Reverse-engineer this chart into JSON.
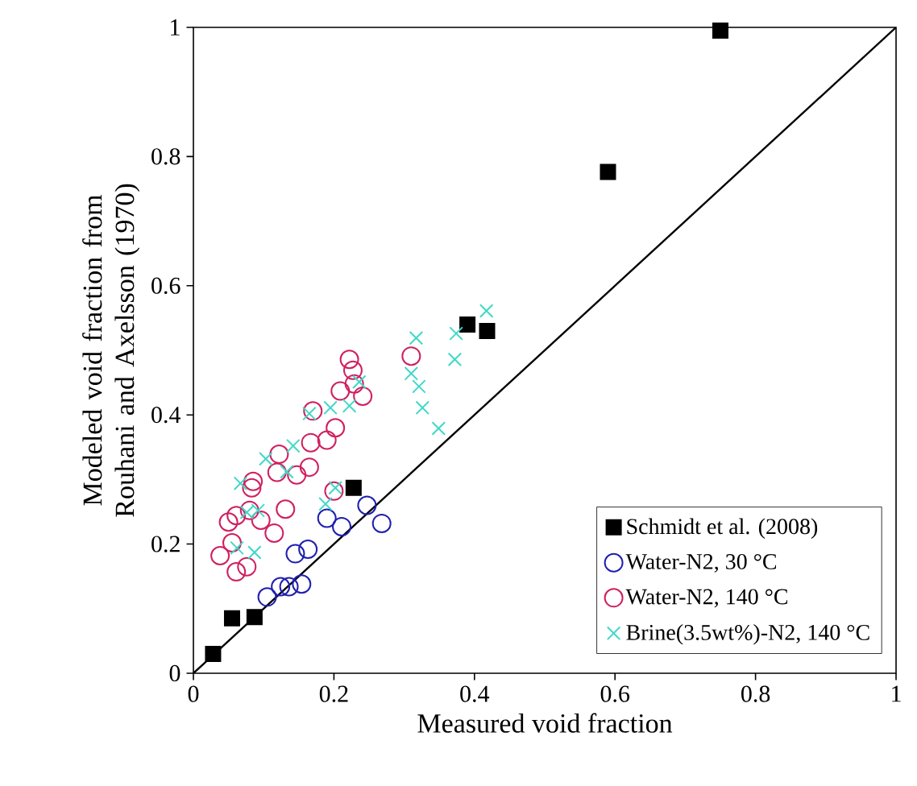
{
  "chart_data": {
    "type": "scatter",
    "xlabel": "Measured void fraction",
    "ylabel": "Modeled void fraction from Rouhani and Axelsson (1970)",
    "xlim": [
      0,
      1
    ],
    "ylim": [
      0,
      1
    ],
    "xticks": [
      0,
      0.2,
      0.4,
      0.6,
      0.8,
      1
    ],
    "yticks": [
      0,
      0.2,
      0.4,
      0.6,
      0.8,
      1
    ],
    "grid": false,
    "legend": "bottom right",
    "series": [
      {
        "name": "Schmidt et al. (2008)",
        "color": "#000000",
        "marker": "square",
        "x": [
          0.028,
          0.055,
          0.087,
          0.228,
          0.39,
          0.418,
          0.59,
          0.75
        ],
        "values": [
          0.03,
          0.085,
          0.087,
          0.287,
          0.54,
          0.53,
          0.776,
          0.995
        ]
      },
      {
        "name": "Water-N2, 30 °C",
        "color": "#2020b0",
        "marker": "circle",
        "x": [
          0.105,
          0.124,
          0.136,
          0.154,
          0.145,
          0.163,
          0.19,
          0.211,
          0.247,
          0.268
        ],
        "values": [
          0.118,
          0.134,
          0.134,
          0.138,
          0.185,
          0.192,
          0.24,
          0.227,
          0.26,
          0.232
        ]
      },
      {
        "name": "Water-N2, 140 °C",
        "color": "#d02060",
        "marker": "circle",
        "x": [
          0.038,
          0.061,
          0.076,
          0.055,
          0.05,
          0.061,
          0.08,
          0.096,
          0.115,
          0.131,
          0.083,
          0.085,
          0.119,
          0.122,
          0.147,
          0.165,
          0.167,
          0.17,
          0.19,
          0.202,
          0.209,
          0.222,
          0.227,
          0.229,
          0.241,
          0.2,
          0.31
        ],
        "values": [
          0.182,
          0.157,
          0.165,
          0.202,
          0.234,
          0.244,
          0.252,
          0.237,
          0.217,
          0.254,
          0.287,
          0.297,
          0.311,
          0.339,
          0.307,
          0.319,
          0.357,
          0.406,
          0.361,
          0.38,
          0.437,
          0.486,
          0.469,
          0.448,
          0.429,
          0.282,
          0.491
        ]
      },
      {
        "name": "Brine(3.5wt%)-N2, 140 °C",
        "color": "#40d8c8",
        "marker": "cross",
        "x": [
          0.062,
          0.087,
          0.067,
          0.076,
          0.092,
          0.103,
          0.142,
          0.133,
          0.165,
          0.195,
          0.188,
          0.202,
          0.222,
          0.236,
          0.317,
          0.31,
          0.321,
          0.326,
          0.349,
          0.372,
          0.374,
          0.417
        ],
        "values": [
          0.194,
          0.187,
          0.294,
          0.249,
          0.252,
          0.332,
          0.352,
          0.312,
          0.402,
          0.411,
          0.262,
          0.287,
          0.414,
          0.451,
          0.519,
          0.464,
          0.444,
          0.411,
          0.379,
          0.486,
          0.526,
          0.561
        ]
      },
      {
        "type": "line",
        "color": "#000000",
        "marker": "none",
        "x": [
          0,
          1
        ],
        "values": [
          0,
          1
        ]
      }
    ]
  }
}
